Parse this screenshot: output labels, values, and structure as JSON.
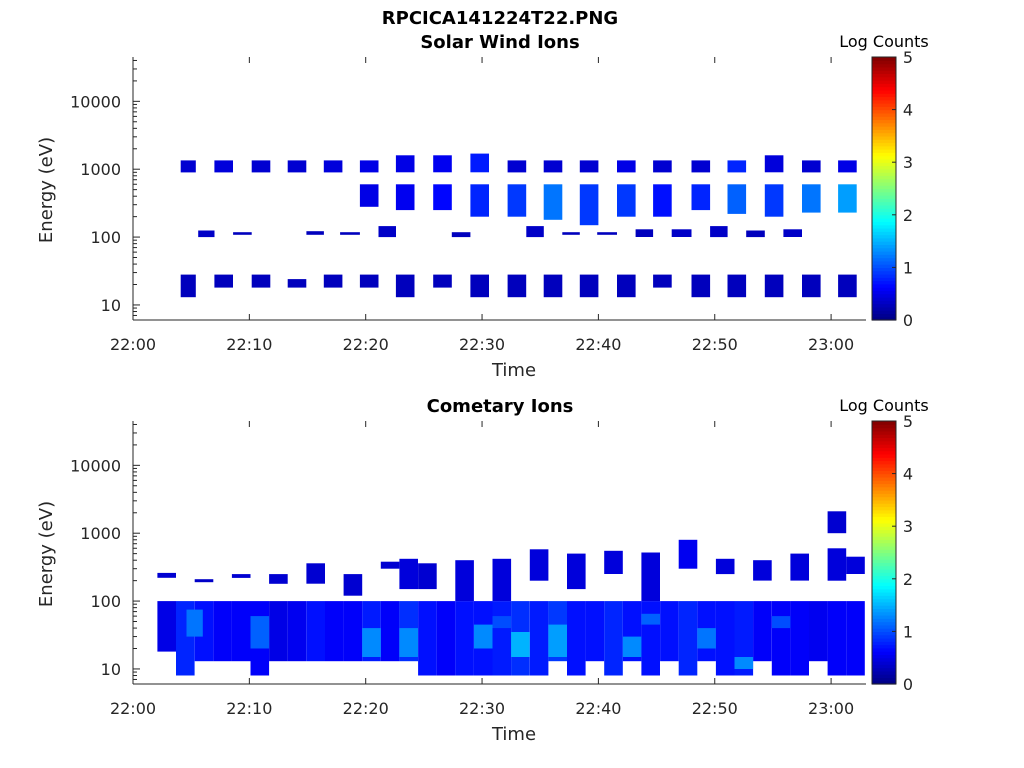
{
  "figure_title": "RPCICA141224T22.PNG",
  "colorbar_label": "Log Counts",
  "chart_data": [
    {
      "type": "heatmap",
      "title": "Solar Wind Ions",
      "xlabel": "Time",
      "ylabel": "Energy (eV)",
      "x_ticks": [
        "22:00",
        "22:10",
        "22:20",
        "22:30",
        "22:40",
        "22:50",
        "23:00"
      ],
      "y_scale": "log",
      "y_ticks": [
        "10",
        "100",
        "1000",
        "10000"
      ],
      "ylim": [
        6,
        45000
      ],
      "xlim_minutes": [
        0,
        63
      ],
      "clim": [
        0,
        5
      ],
      "colorbar_ticks": [
        "0",
        "1",
        "2",
        "3",
        "4",
        "5"
      ],
      "colormap": "jet",
      "cells": [
        [
          4.1,
          5.4,
          13,
          28,
          0.3
        ],
        [
          4.1,
          5.4,
          900,
          1350,
          0.4
        ],
        [
          7.0,
          8.6,
          18,
          28,
          0.3
        ],
        [
          7.0,
          8.6,
          900,
          1350,
          0.45
        ],
        [
          10.2,
          11.8,
          18,
          28,
          0.3
        ],
        [
          10.2,
          11.8,
          900,
          1350,
          0.4
        ],
        [
          13.3,
          14.9,
          18,
          24,
          0.3
        ],
        [
          13.3,
          14.9,
          900,
          1350,
          0.4
        ],
        [
          16.4,
          18.0,
          18,
          28,
          0.3
        ],
        [
          16.4,
          18.0,
          900,
          1350,
          0.45
        ],
        [
          19.5,
          21.1,
          18,
          28,
          0.3
        ],
        [
          19.5,
          21.1,
          900,
          1350,
          0.5
        ],
        [
          22.6,
          24.2,
          13,
          28,
          0.3
        ],
        [
          22.6,
          24.2,
          900,
          1600,
          0.5
        ],
        [
          25.8,
          27.4,
          18,
          28,
          0.3
        ],
        [
          25.8,
          27.4,
          900,
          1600,
          0.55
        ],
        [
          29.0,
          30.6,
          13,
          28,
          0.3
        ],
        [
          29.0,
          30.6,
          900,
          1700,
          0.75
        ],
        [
          32.2,
          33.8,
          13,
          28,
          0.3
        ],
        [
          32.2,
          33.8,
          900,
          1350,
          0.4
        ],
        [
          35.3,
          36.9,
          13,
          28,
          0.3
        ],
        [
          35.3,
          36.9,
          900,
          1350,
          0.4
        ],
        [
          38.4,
          40.0,
          13,
          28,
          0.3
        ],
        [
          38.4,
          40.0,
          900,
          1350,
          0.4
        ],
        [
          41.6,
          43.2,
          13,
          28,
          0.3
        ],
        [
          41.6,
          43.2,
          900,
          1350,
          0.5
        ],
        [
          44.7,
          46.3,
          18,
          28,
          0.3
        ],
        [
          44.7,
          46.3,
          900,
          1350,
          0.4
        ],
        [
          48.0,
          49.6,
          13,
          28,
          0.3
        ],
        [
          48.0,
          49.6,
          900,
          1350,
          0.4
        ],
        [
          51.1,
          52.7,
          13,
          28,
          0.3
        ],
        [
          51.1,
          52.7,
          900,
          1350,
          0.8
        ],
        [
          54.3,
          55.9,
          13,
          28,
          0.3
        ],
        [
          54.3,
          55.9,
          900,
          1600,
          0.45
        ],
        [
          57.5,
          59.1,
          13,
          28,
          0.3
        ],
        [
          57.5,
          59.1,
          900,
          1350,
          0.4
        ],
        [
          60.6,
          62.2,
          13,
          28,
          0.3
        ],
        [
          60.6,
          62.2,
          900,
          1350,
          0.5
        ],
        [
          19.5,
          21.1,
          280,
          600,
          0.5
        ],
        [
          22.6,
          24.2,
          250,
          600,
          0.55
        ],
        [
          25.8,
          27.4,
          250,
          600,
          0.65
        ],
        [
          29.0,
          30.6,
          200,
          600,
          0.8
        ],
        [
          32.2,
          33.8,
          200,
          600,
          0.9
        ],
        [
          35.3,
          36.9,
          180,
          600,
          1.2
        ],
        [
          38.4,
          40.0,
          150,
          600,
          0.9
        ],
        [
          41.6,
          43.2,
          200,
          600,
          0.9
        ],
        [
          44.7,
          46.3,
          200,
          600,
          0.7
        ],
        [
          48.0,
          49.6,
          250,
          600,
          0.8
        ],
        [
          51.1,
          52.7,
          220,
          600,
          1.1
        ],
        [
          54.3,
          55.9,
          200,
          600,
          0.9
        ],
        [
          57.5,
          59.1,
          230,
          600,
          1.2
        ],
        [
          60.6,
          62.2,
          230,
          600,
          1.4
        ],
        [
          5.6,
          7.0,
          100,
          125,
          0.35
        ],
        [
          8.6,
          10.2,
          108,
          118,
          0.3
        ],
        [
          14.9,
          16.4,
          108,
          122,
          0.3
        ],
        [
          17.8,
          19.5,
          108,
          118,
          0.3
        ],
        [
          21.1,
          22.6,
          100,
          145,
          0.35
        ],
        [
          27.4,
          29.0,
          100,
          118,
          0.3
        ],
        [
          33.8,
          35.3,
          100,
          145,
          0.35
        ],
        [
          36.9,
          38.4,
          108,
          118,
          0.3
        ],
        [
          39.9,
          41.6,
          108,
          118,
          0.3
        ],
        [
          43.2,
          44.7,
          100,
          130,
          0.3
        ],
        [
          46.3,
          48.0,
          100,
          130,
          0.35
        ],
        [
          49.6,
          51.1,
          100,
          145,
          0.35
        ],
        [
          52.7,
          54.3,
          100,
          125,
          0.3
        ],
        [
          55.9,
          57.5,
          100,
          130,
          0.35
        ]
      ]
    },
    {
      "type": "heatmap",
      "title": "Cometary Ions",
      "xlabel": "Time",
      "ylabel": "Energy (eV)",
      "x_ticks": [
        "22:00",
        "22:10",
        "22:20",
        "22:30",
        "22:40",
        "22:50",
        "23:00"
      ],
      "y_scale": "log",
      "y_ticks": [
        "10",
        "100",
        "1000",
        "10000"
      ],
      "ylim": [
        6,
        45000
      ],
      "xlim_minutes": [
        0,
        63
      ],
      "clim": [
        0,
        5
      ],
      "colorbar_ticks": [
        "0",
        "1",
        "2",
        "3",
        "4",
        "5"
      ],
      "colormap": "jet",
      "cells": [
        [
          2.1,
          3.7,
          18,
          100,
          0.5
        ],
        [
          3.7,
          5.3,
          8,
          100,
          0.8
        ],
        [
          5.3,
          6.9,
          13,
          100,
          0.7
        ],
        [
          6.9,
          8.5,
          13,
          100,
          0.6
        ],
        [
          8.5,
          10.1,
          13,
          100,
          0.6
        ],
        [
          10.1,
          11.7,
          8,
          100,
          0.6
        ],
        [
          11.7,
          13.3,
          13,
          100,
          0.5
        ],
        [
          13.3,
          14.9,
          13,
          100,
          0.55
        ],
        [
          14.9,
          16.5,
          13,
          100,
          0.7
        ],
        [
          16.5,
          18.1,
          13,
          100,
          0.6
        ],
        [
          18.1,
          19.7,
          13,
          100,
          0.6
        ],
        [
          19.7,
          21.3,
          13,
          100,
          0.75
        ],
        [
          21.3,
          22.9,
          13,
          100,
          0.6
        ],
        [
          22.9,
          24.5,
          13,
          100,
          0.85
        ],
        [
          24.5,
          26.1,
          8,
          100,
          0.7
        ],
        [
          26.1,
          27.7,
          8,
          100,
          0.6
        ],
        [
          27.7,
          29.3,
          8,
          100,
          0.7
        ],
        [
          29.3,
          30.9,
          8,
          100,
          0.7
        ],
        [
          30.9,
          32.5,
          8,
          100,
          0.75
        ],
        [
          32.5,
          34.1,
          8,
          100,
          0.85
        ],
        [
          34.1,
          35.7,
          8,
          100,
          0.75
        ],
        [
          35.7,
          37.3,
          13,
          100,
          0.9
        ],
        [
          37.3,
          38.9,
          8,
          100,
          0.7
        ],
        [
          38.9,
          40.5,
          13,
          100,
          0.7
        ],
        [
          40.5,
          42.1,
          8,
          100,
          0.8
        ],
        [
          42.1,
          43.7,
          13,
          100,
          0.7
        ],
        [
          43.7,
          45.3,
          8,
          100,
          0.7
        ],
        [
          45.3,
          46.9,
          13,
          100,
          0.7
        ],
        [
          46.9,
          48.5,
          8,
          100,
          0.8
        ],
        [
          48.5,
          50.1,
          13,
          100,
          0.7
        ],
        [
          50.1,
          51.7,
          8,
          100,
          0.7
        ],
        [
          51.7,
          53.3,
          8,
          100,
          0.75
        ],
        [
          53.3,
          54.9,
          13,
          100,
          0.6
        ],
        [
          54.9,
          56.5,
          8,
          100,
          0.6
        ],
        [
          56.5,
          58.1,
          8,
          100,
          0.6
        ],
        [
          58.1,
          59.7,
          13,
          100,
          0.55
        ],
        [
          59.7,
          61.3,
          8,
          100,
          0.6
        ],
        [
          61.3,
          62.9,
          8,
          100,
          0.6
        ],
        [
          4.6,
          6.0,
          30,
          75,
          1.2
        ],
        [
          10.1,
          11.7,
          20,
          60,
          1.1
        ],
        [
          19.7,
          21.3,
          15,
          40,
          1.3
        ],
        [
          22.9,
          24.5,
          15,
          40,
          1.3
        ],
        [
          29.3,
          30.9,
          20,
          45,
          1.3
        ],
        [
          32.5,
          34.1,
          15,
          35,
          1.5
        ],
        [
          35.7,
          37.3,
          15,
          45,
          1.4
        ],
        [
          42.1,
          43.7,
          15,
          30,
          1.3
        ],
        [
          48.5,
          50.1,
          20,
          40,
          1.2
        ],
        [
          51.7,
          53.3,
          10,
          15,
          1.3
        ],
        [
          30.9,
          32.5,
          40,
          60,
          1.0
        ],
        [
          43.7,
          45.3,
          45,
          65,
          1.1
        ],
        [
          54.9,
          56.5,
          40,
          60,
          1.0
        ],
        [
          2.1,
          3.7,
          220,
          260,
          0.4
        ],
        [
          5.3,
          6.9,
          190,
          210,
          0.35
        ],
        [
          8.5,
          10.1,
          220,
          250,
          0.4
        ],
        [
          11.7,
          13.3,
          180,
          250,
          0.4
        ],
        [
          14.9,
          16.5,
          180,
          360,
          0.4
        ],
        [
          18.1,
          19.7,
          120,
          250,
          0.4
        ],
        [
          21.3,
          22.9,
          300,
          380,
          0.4
        ],
        [
          22.9,
          24.5,
          150,
          420,
          0.45
        ],
        [
          24.5,
          26.1,
          150,
          360,
          0.4
        ],
        [
          27.7,
          29.3,
          100,
          400,
          0.45
        ],
        [
          30.9,
          32.5,
          100,
          420,
          0.45
        ],
        [
          34.1,
          35.7,
          200,
          580,
          0.45
        ],
        [
          37.3,
          38.9,
          150,
          500,
          0.45
        ],
        [
          40.5,
          42.1,
          250,
          550,
          0.45
        ],
        [
          43.7,
          45.3,
          100,
          520,
          0.45
        ],
        [
          46.9,
          48.5,
          300,
          800,
          0.55
        ],
        [
          50.1,
          51.7,
          250,
          420,
          0.45
        ],
        [
          53.3,
          54.9,
          200,
          400,
          0.45
        ],
        [
          56.5,
          58.1,
          200,
          500,
          0.45
        ],
        [
          59.7,
          61.3,
          1000,
          2100,
          0.4
        ],
        [
          59.7,
          61.3,
          200,
          600,
          0.45
        ],
        [
          61.3,
          62.9,
          250,
          450,
          0.45
        ]
      ]
    }
  ]
}
